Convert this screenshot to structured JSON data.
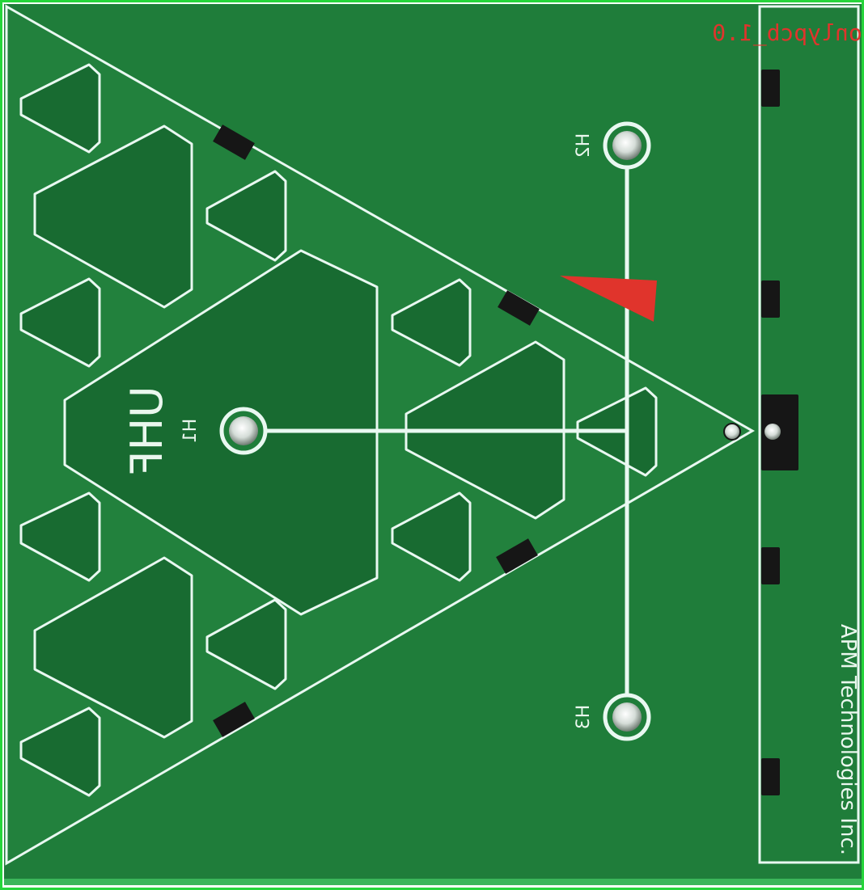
{
  "board": {
    "label_top_right": "onlypcb_1.0",
    "company": "APM Technologies Inc.",
    "antenna_label": "UHF",
    "holes": {
      "h1": "H1",
      "h2": "H2",
      "h3": "H3"
    }
  },
  "colors": {
    "pcb_green": "#1f7d3a",
    "silkscreen": "#e9f8f1",
    "copper_dark": "#0f6a2c",
    "pad_black": "#161616",
    "marker_red": "#e0342c",
    "frame_green": "#26d53b"
  },
  "icons": {
    "mounting_hole": "circle-ring",
    "pad": "rect"
  }
}
